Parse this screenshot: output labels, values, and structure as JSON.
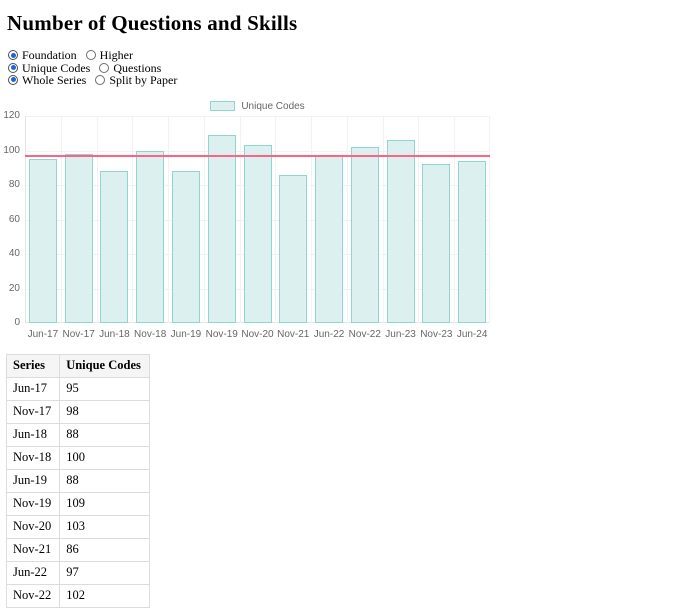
{
  "page": {
    "title": "Number of Questions and Skills"
  },
  "controls": {
    "groups": [
      {
        "id": "tier",
        "options": [
          {
            "label": "Foundation",
            "selected": true
          },
          {
            "label": "Higher",
            "selected": false
          }
        ]
      },
      {
        "id": "metric",
        "options": [
          {
            "label": "Unique Codes",
            "selected": true
          },
          {
            "label": "Questions",
            "selected": false
          }
        ]
      },
      {
        "id": "series-mode",
        "options": [
          {
            "label": "Whole Series",
            "selected": true
          },
          {
            "label": "Split by Paper",
            "selected": false
          }
        ]
      }
    ]
  },
  "chart_data": {
    "type": "bar",
    "title": "",
    "categories": [
      "Jun-17",
      "Nov-17",
      "Jun-18",
      "Nov-18",
      "Jun-19",
      "Nov-19",
      "Nov-20",
      "Nov-21",
      "Jun-22",
      "Nov-22",
      "Jun-23",
      "Nov-23",
      "Jun-24"
    ],
    "series": [
      {
        "name": "Unique Codes",
        "values": [
          95,
          98,
          88,
          100,
          88,
          109,
          103,
          86,
          97,
          102,
          106,
          92,
          94
        ]
      }
    ],
    "average_line": 96.8,
    "ylim": [
      0,
      120
    ],
    "yticks": [
      0,
      20,
      40,
      60,
      80,
      100,
      120
    ],
    "grid": true,
    "legend_position": "top",
    "colors": {
      "bar_fill": "#dcf1ef",
      "bar_border": "#90d5cf",
      "avg_line": "#ff6384",
      "grid": "#f2f2f2",
      "tick_text": "#666666"
    }
  },
  "table": {
    "headers": [
      "Series",
      "Unique Codes"
    ],
    "rows": [
      [
        "Jun-17",
        "95"
      ],
      [
        "Nov-17",
        "98"
      ],
      [
        "Jun-18",
        "88"
      ],
      [
        "Nov-18",
        "100"
      ],
      [
        "Jun-19",
        "88"
      ],
      [
        "Nov-19",
        "109"
      ],
      [
        "Nov-20",
        "103"
      ],
      [
        "Nov-21",
        "86"
      ],
      [
        "Jun-22",
        "97"
      ],
      [
        "Nov-22",
        "102"
      ]
    ]
  }
}
